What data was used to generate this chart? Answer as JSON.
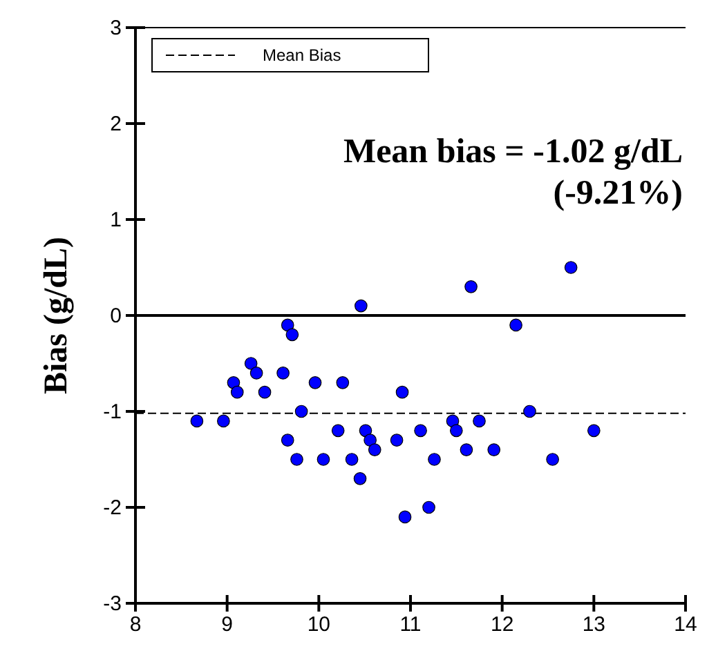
{
  "chart_data": {
    "type": "scatter",
    "ylabel": "Bias (g/dL)",
    "xlim": [
      8,
      14
    ],
    "xticks": [
      8,
      9,
      10,
      11,
      12,
      13,
      14
    ],
    "ylim": [
      -3,
      3
    ],
    "yticks": [
      -3,
      -2,
      -1,
      0,
      1,
      2,
      3
    ],
    "marker": "circle",
    "legend": "top left",
    "grid": false,
    "annotations": [
      "Mean bias = -1.02 g/dL",
      "(-9.21%)"
    ],
    "ref_lines": [
      {
        "axis": "y",
        "value": 0,
        "color": "#000000",
        "line_style": "solid"
      },
      {
        "axis": "y",
        "value": -1.02,
        "label": "Mean Bias",
        "color": "#000000",
        "line_style": "dashed"
      }
    ],
    "series": [
      {
        "color": "#0000ff",
        "x": [
          8.67,
          8.96,
          9.07,
          9.11,
          9.26,
          9.32,
          9.41,
          9.61,
          9.66,
          9.71,
          9.66,
          9.81,
          9.76,
          9.96,
          10.05,
          10.26,
          10.21,
          10.36,
          10.45,
          10.51,
          10.56,
          10.61,
          10.85,
          10.91,
          10.94,
          10.46,
          11.66,
          12.75,
          12.15,
          12.3,
          11.46,
          11.75,
          11.11,
          11.5,
          13.0,
          11.26,
          11.61,
          11.91,
          12.55,
          11.2
        ],
        "values": [
          -1.1,
          -1.1,
          -0.7,
          -0.8,
          -0.5,
          -0.6,
          -0.8,
          -0.6,
          -0.1,
          -0.2,
          -1.3,
          -1.0,
          -1.5,
          -0.7,
          -1.5,
          -0.7,
          -1.2,
          -1.5,
          -1.7,
          -1.2,
          -1.3,
          -1.4,
          -1.3,
          -0.8,
          -2.1,
          0.1,
          0.3,
          0.5,
          -0.1,
          -1.0,
          -1.1,
          -1.1,
          -1.2,
          -1.2,
          -1.2,
          -1.5,
          -1.4,
          -1.4,
          -1.5,
          -2.0
        ]
      }
    ]
  }
}
